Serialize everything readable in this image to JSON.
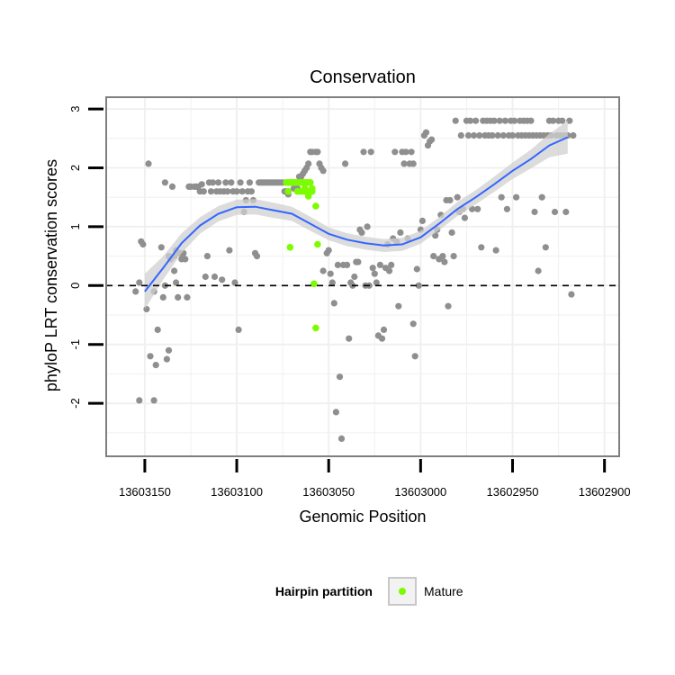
{
  "chart_data": {
    "type": "scatter",
    "title": "Conservation",
    "xlabel": "Genomic Position",
    "ylabel": "phyloP LRT conservation scores",
    "x_reversed": true,
    "xlim": [
      13603171,
      13602892
    ],
    "ylim": [
      -2.9,
      3.2
    ],
    "x_ticks": [
      13603150,
      13603100,
      13603050,
      13603000,
      13602950,
      13602900
    ],
    "x_tick_labels": [
      "13603150",
      "13603100",
      "13603050",
      "13603000",
      "13602950",
      "13602900"
    ],
    "y_ticks": [
      -2,
      -1,
      0,
      1,
      2,
      3
    ],
    "y_tick_labels": [
      "-2",
      "-1",
      "0",
      "1",
      "2",
      "3"
    ],
    "grid": true,
    "reference_line": {
      "y": 0,
      "style": "dashed"
    },
    "legend": {
      "title": "Hairpin partition",
      "entries": [
        "Mature"
      ],
      "placement": "bottom"
    },
    "colors": {
      "background_points": "#8f8f8f",
      "mature": "#7cfc00",
      "smooth": "#3366ff",
      "ribbon": "#d0d0d0",
      "panel_border": "#7f7f7f",
      "grid": "#f0f0f0"
    },
    "series": [
      {
        "role": "background",
        "points": [
          [
            13603153,
            0.05
          ],
          [
            13603155,
            -0.1
          ],
          [
            13603152,
            0.75
          ],
          [
            13603151,
            0.7
          ],
          [
            13603149,
            -0.4
          ],
          [
            13603148,
            2.07
          ],
          [
            13603147,
            -1.2
          ],
          [
            13603145,
            -1.95
          ],
          [
            13603153,
            -1.95
          ],
          [
            13603144,
            -1.35
          ],
          [
            13603145,
            -0.1
          ],
          [
            13603143,
            -0.75
          ],
          [
            13603141,
            0.65
          ],
          [
            13603140,
            -0.2
          ],
          [
            13603139,
            1.75
          ],
          [
            13603139,
            0.0
          ],
          [
            13603138,
            -1.25
          ],
          [
            13603137,
            -1.1
          ],
          [
            13603137,
            0.5
          ],
          [
            13603136,
            0.45
          ],
          [
            13603135,
            1.68
          ],
          [
            13603134,
            0.25
          ],
          [
            13603134,
            0.5
          ],
          [
            13603133,
            0.6
          ],
          [
            13603133,
            0.05
          ],
          [
            13603132,
            -0.2
          ],
          [
            13603131,
            0.55
          ],
          [
            13603130,
            0.45
          ],
          [
            13603129,
            0.55
          ],
          [
            13603128,
            0.45
          ],
          [
            13603127,
            -0.2
          ],
          [
            13603126,
            1.68
          ],
          [
            13603125,
            1.68
          ],
          [
            13603123,
            1.68
          ],
          [
            13603122,
            1.68
          ],
          [
            13603121,
            1.68
          ],
          [
            13603120,
            1.6
          ],
          [
            13603119,
            1.72
          ],
          [
            13603118,
            1.6
          ],
          [
            13603117,
            0.15
          ],
          [
            13603116,
            0.5
          ],
          [
            13603115,
            1.75
          ],
          [
            13603114,
            1.6
          ],
          [
            13603113,
            1.75
          ],
          [
            13603112,
            0.15
          ],
          [
            13603111,
            1.6
          ],
          [
            13603110,
            1.75
          ],
          [
            13603109,
            1.6
          ],
          [
            13603108,
            0.1
          ],
          [
            13603107,
            1.6
          ],
          [
            13603106,
            1.75
          ],
          [
            13603105,
            1.6
          ],
          [
            13603104,
            0.6
          ],
          [
            13603103,
            1.75
          ],
          [
            13603102,
            1.6
          ],
          [
            13603101,
            0.05
          ],
          [
            13603100,
            1.6
          ],
          [
            13603099,
            -0.75
          ],
          [
            13603098,
            1.75
          ],
          [
            13603097,
            1.6
          ],
          [
            13603096,
            1.25
          ],
          [
            13603095,
            1.45
          ],
          [
            13603094,
            1.6
          ],
          [
            13603093,
            1.75
          ],
          [
            13603092,
            1.6
          ],
          [
            13603091,
            1.45
          ],
          [
            13603090,
            0.55
          ],
          [
            13603089,
            0.5
          ],
          [
            13603088,
            1.75
          ],
          [
            13603087,
            1.75
          ],
          [
            13603086,
            1.75
          ],
          [
            13603085,
            1.75
          ],
          [
            13603084,
            1.75
          ],
          [
            13603083,
            1.75
          ],
          [
            13603082,
            1.75
          ],
          [
            13603081,
            1.75
          ],
          [
            13603080,
            1.75
          ],
          [
            13603079,
            1.75
          ],
          [
            13603078,
            1.75
          ],
          [
            13603077,
            1.75
          ],
          [
            13603076,
            1.75
          ],
          [
            13603075,
            1.75
          ],
          [
            13603074,
            1.6
          ],
          [
            13603073,
            1.6
          ],
          [
            13603072,
            1.55
          ],
          [
            13603069,
            1.65
          ],
          [
            13603067,
            1.65
          ],
          [
            13603066,
            1.85
          ],
          [
            13603065,
            1.85
          ],
          [
            13603064,
            1.9
          ],
          [
            13603063,
            1.95
          ],
          [
            13603062,
            2.0
          ],
          [
            13603061,
            2.07
          ],
          [
            13603060,
            2.27
          ],
          [
            13603059,
            2.27
          ],
          [
            13603057,
            2.27
          ],
          [
            13603056,
            2.27
          ],
          [
            13603055,
            2.07
          ],
          [
            13603054,
            2.0
          ],
          [
            13603053,
            1.95
          ],
          [
            13603053,
            0.25
          ],
          [
            13603051,
            0.55
          ],
          [
            13603050,
            0.6
          ],
          [
            13603049,
            0.2
          ],
          [
            13603048,
            0.05
          ],
          [
            13603047,
            -0.3
          ],
          [
            13603046,
            -2.15
          ],
          [
            13603045,
            0.35
          ],
          [
            13603044,
            -1.55
          ],
          [
            13603043,
            -2.6
          ],
          [
            13603042,
            0.35
          ],
          [
            13603041,
            2.07
          ],
          [
            13603040,
            0.35
          ],
          [
            13603039,
            -0.9
          ],
          [
            13603038,
            0.05
          ],
          [
            13603037,
            0.0
          ],
          [
            13603036,
            0.15
          ],
          [
            13603035,
            0.4
          ],
          [
            13603034,
            0.4
          ],
          [
            13603033,
            0.95
          ],
          [
            13603032,
            0.9
          ],
          [
            13603031,
            2.27
          ],
          [
            13603030,
            0.0
          ],
          [
            13603029,
            1.0
          ],
          [
            13603028,
            0.0
          ],
          [
            13603027,
            2.27
          ],
          [
            13603026,
            0.3
          ],
          [
            13603025,
            0.2
          ],
          [
            13603024,
            0.05
          ],
          [
            13603023,
            -0.85
          ],
          [
            13603022,
            0.35
          ],
          [
            13603021,
            -0.9
          ],
          [
            13603020,
            -0.75
          ],
          [
            13603019,
            0.3
          ],
          [
            13603018,
            0.7
          ],
          [
            13603017,
            0.25
          ],
          [
            13603016,
            0.35
          ],
          [
            13603015,
            0.8
          ],
          [
            13603014,
            2.27
          ],
          [
            13603013,
            0.75
          ],
          [
            13603012,
            -0.35
          ],
          [
            13603011,
            0.9
          ],
          [
            13603010,
            2.27
          ],
          [
            13603009,
            2.07
          ],
          [
            13603008,
            2.27
          ],
          [
            13603007,
            0.8
          ],
          [
            13603006,
            2.07
          ],
          [
            13603005,
            2.27
          ],
          [
            13603004,
            2.07
          ],
          [
            13603004,
            -0.65
          ],
          [
            13603003,
            -1.2
          ],
          [
            13603002,
            0.28
          ],
          [
            13603001,
            0.0
          ],
          [
            13603000,
            0.95
          ],
          [
            13602999,
            1.1
          ],
          [
            13602998,
            2.55
          ],
          [
            13602997,
            2.6
          ],
          [
            13602996,
            2.38
          ],
          [
            13602995,
            2.45
          ],
          [
            13602994,
            2.48
          ],
          [
            13602993,
            0.5
          ],
          [
            13602992,
            0.85
          ],
          [
            13602991,
            0.95
          ],
          [
            13602990,
            0.45
          ],
          [
            13602989,
            1.2
          ],
          [
            13602988,
            0.5
          ],
          [
            13602987,
            0.4
          ],
          [
            13602986,
            1.45
          ],
          [
            13602985,
            -0.35
          ],
          [
            13602984,
            1.45
          ],
          [
            13602983,
            0.9
          ],
          [
            13602982,
            0.5
          ],
          [
            13602981,
            2.8
          ],
          [
            13602980,
            1.5
          ],
          [
            13602979,
            1.25
          ],
          [
            13602978,
            2.55
          ],
          [
            13602977,
            1.3
          ],
          [
            13602976,
            1.15
          ],
          [
            13602975,
            2.8
          ],
          [
            13602974,
            2.55
          ],
          [
            13602973,
            2.8
          ],
          [
            13602972,
            1.3
          ],
          [
            13602971,
            2.55
          ],
          [
            13602970,
            2.8
          ],
          [
            13602969,
            1.3
          ],
          [
            13602968,
            2.55
          ],
          [
            13602967,
            0.65
          ],
          [
            13602966,
            2.8
          ],
          [
            13602965,
            2.55
          ],
          [
            13602964,
            2.8
          ],
          [
            13602963,
            2.55
          ],
          [
            13602962,
            2.8
          ],
          [
            13602961,
            2.55
          ],
          [
            13602960,
            2.8
          ],
          [
            13602959,
            0.6
          ],
          [
            13602958,
            2.55
          ],
          [
            13602957,
            2.8
          ],
          [
            13602956,
            1.5
          ],
          [
            13602955,
            2.55
          ],
          [
            13602954,
            2.8
          ],
          [
            13602953,
            1.3
          ],
          [
            13602952,
            2.55
          ],
          [
            13602951,
            2.8
          ],
          [
            13602950,
            2.55
          ],
          [
            13602949,
            2.8
          ],
          [
            13602948,
            1.5
          ],
          [
            13602947,
            2.55
          ],
          [
            13602946,
            2.8
          ],
          [
            13602945,
            2.55
          ],
          [
            13602944,
            2.8
          ],
          [
            13602943,
            2.55
          ],
          [
            13602942,
            2.8
          ],
          [
            13602941,
            2.55
          ],
          [
            13602940,
            2.8
          ],
          [
            13602939,
            2.55
          ],
          [
            13602938,
            1.25
          ],
          [
            13602937,
            2.55
          ],
          [
            13602936,
            0.25
          ],
          [
            13602935,
            2.55
          ],
          [
            13602934,
            1.5
          ],
          [
            13602933,
            2.55
          ],
          [
            13602932,
            0.65
          ],
          [
            13602931,
            2.55
          ],
          [
            13602930,
            2.8
          ],
          [
            13602929,
            2.55
          ],
          [
            13602928,
            2.8
          ],
          [
            13602927,
            1.25
          ],
          [
            13602926,
            2.55
          ],
          [
            13602925,
            2.8
          ],
          [
            13602924,
            2.55
          ],
          [
            13602923,
            2.8
          ],
          [
            13602922,
            2.55
          ],
          [
            13602921,
            1.25
          ],
          [
            13602920,
            2.55
          ],
          [
            13602919,
            2.8
          ],
          [
            13602918,
            -0.15
          ],
          [
            13602917,
            2.55
          ]
        ]
      },
      {
        "role": "mature",
        "name": "Mature",
        "points": [
          [
            13603073,
            1.75
          ],
          [
            13603072,
            1.75
          ],
          [
            13603071,
            1.75
          ],
          [
            13603070,
            1.75
          ],
          [
            13603069,
            1.75
          ],
          [
            13603068,
            1.75
          ],
          [
            13603067,
            1.75
          ],
          [
            13603066,
            1.75
          ],
          [
            13603065,
            1.75
          ],
          [
            13603064,
            1.75
          ],
          [
            13603063,
            1.75
          ],
          [
            13603062,
            1.75
          ],
          [
            13603061,
            1.75
          ],
          [
            13603060,
            1.75
          ],
          [
            13603072,
            1.6
          ],
          [
            13603067,
            1.6
          ],
          [
            13603065,
            1.6
          ],
          [
            13603063,
            1.6
          ],
          [
            13603061,
            1.6
          ],
          [
            13603059,
            1.6
          ],
          [
            13603063,
            1.65
          ],
          [
            13603061,
            1.52
          ],
          [
            13603059,
            1.65
          ],
          [
            13603057,
            1.35
          ],
          [
            13603071,
            0.65
          ],
          [
            13603056,
            0.7
          ],
          [
            13603058,
            0.03
          ],
          [
            13603057,
            -0.72
          ]
        ]
      }
    ],
    "smooth": [
      [
        13603150,
        -0.1
      ],
      [
        13603140,
        0.3
      ],
      [
        13603130,
        0.72
      ],
      [
        13603120,
        1.02
      ],
      [
        13603110,
        1.22
      ],
      [
        13603100,
        1.33
      ],
      [
        13603090,
        1.34
      ],
      [
        13603080,
        1.28
      ],
      [
        13603070,
        1.22
      ],
      [
        13603060,
        1.05
      ],
      [
        13603050,
        0.88
      ],
      [
        13603040,
        0.78
      ],
      [
        13603030,
        0.72
      ],
      [
        13603020,
        0.68
      ],
      [
        13603010,
        0.7
      ],
      [
        13603000,
        0.82
      ],
      [
        13602990,
        1.05
      ],
      [
        13602980,
        1.3
      ],
      [
        13602970,
        1.5
      ],
      [
        13602960,
        1.72
      ],
      [
        13602950,
        1.95
      ],
      [
        13602940,
        2.15
      ],
      [
        13602930,
        2.38
      ],
      [
        13602920,
        2.52
      ]
    ],
    "ribbon_halfwidth": [
      0.3,
      0.2,
      0.17,
      0.14,
      0.13,
      0.13,
      0.13,
      0.13,
      0.12,
      0.12,
      0.11,
      0.11,
      0.11,
      0.11,
      0.11,
      0.11,
      0.11,
      0.12,
      0.12,
      0.13,
      0.14,
      0.16,
      0.2,
      0.28
    ]
  }
}
